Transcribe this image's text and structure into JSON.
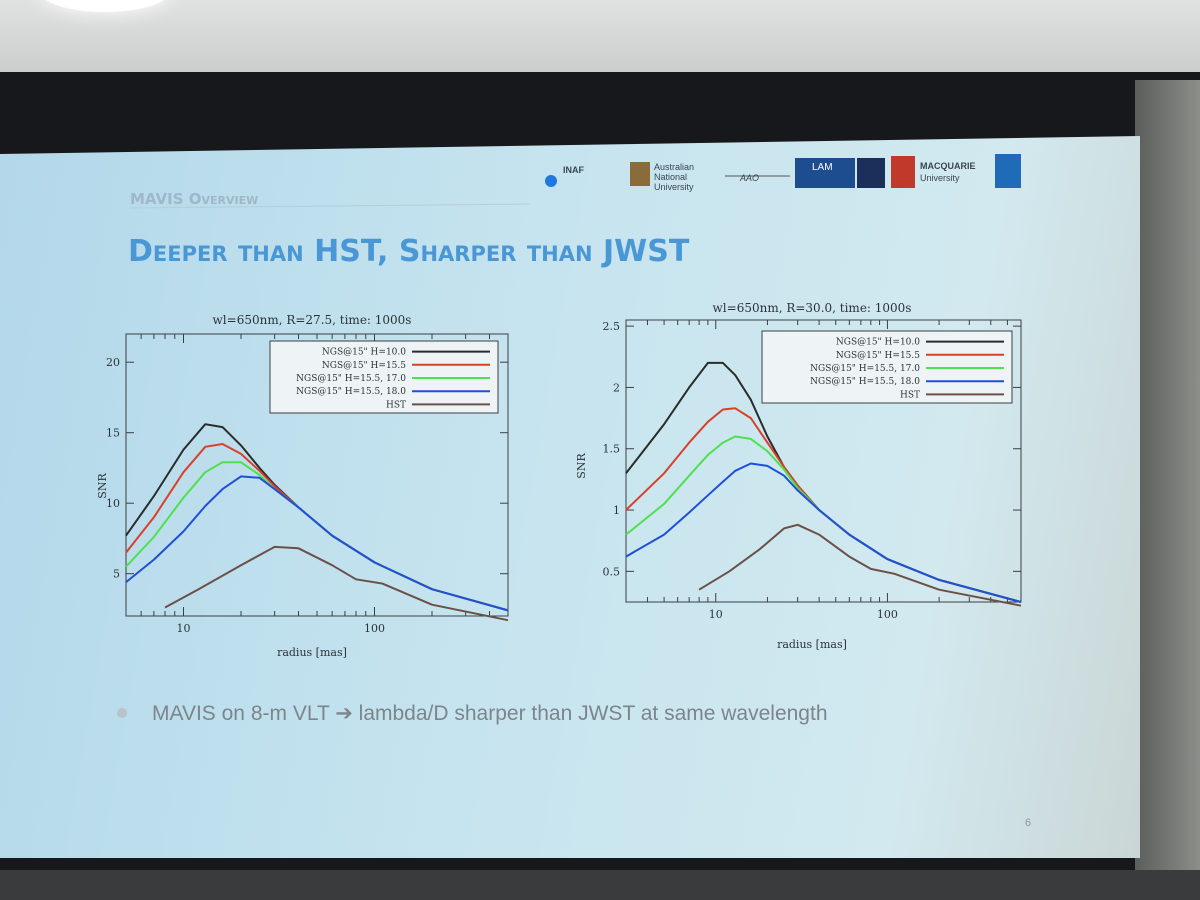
{
  "slide": {
    "section": "MAVIS Overview",
    "title": "Deeper than HST, Sharper than JWST",
    "bullet": "MAVIS on 8-m VLT ➔ lambda/D sharper than JWST at same wavelength",
    "page_number": "6",
    "logos": {
      "inaf": "INAF",
      "anu": [
        "Australian",
        "National",
        "University"
      ],
      "aao": "AAO",
      "lam": "LAM",
      "macquarie": [
        "MACQUARIE",
        "University"
      ]
    },
    "colors": {
      "title": "#4a97d6",
      "section": "#9fb7c7",
      "bullet": "#7c858b"
    }
  },
  "chart_data": [
    {
      "type": "line",
      "title": "wl=650nm,  R=27.5,  time: 1000s",
      "xlabel": "radius [mas]",
      "ylabel": "SNR",
      "xscale": "log",
      "xlim": [
        5,
        500
      ],
      "ylim": [
        2,
        22
      ],
      "xticks": [
        10,
        100
      ],
      "yticks": [
        5,
        10,
        15,
        20
      ],
      "legend_position": "top-right",
      "series": [
        {
          "name": "NGS@15\"  H=10.0",
          "color": "#2b2b2b",
          "x": [
            5,
            7,
            10,
            13,
            16,
            20,
            25,
            30,
            40,
            60,
            100,
            200,
            500
          ],
          "y": [
            7.7,
            10.5,
            13.8,
            15.6,
            15.4,
            14.1,
            12.5,
            11.3,
            9.7,
            7.7,
            5.8,
            3.9,
            2.4
          ]
        },
        {
          "name": "NGS@15\"  H=15.5",
          "color": "#d9402a",
          "x": [
            5,
            7,
            10,
            13,
            16,
            20,
            25,
            30,
            40,
            60,
            100,
            200,
            500
          ],
          "y": [
            6.5,
            9.0,
            12.2,
            14.0,
            14.2,
            13.5,
            12.3,
            11.2,
            9.7,
            7.7,
            5.8,
            3.9,
            2.4
          ]
        },
        {
          "name": "NGS@15\"  H=15.5, 17.0",
          "color": "#4ee14e",
          "x": [
            5,
            7,
            10,
            13,
            16,
            20,
            25,
            30,
            40,
            60,
            100,
            200,
            500
          ],
          "y": [
            5.5,
            7.6,
            10.4,
            12.2,
            12.9,
            12.9,
            12.0,
            11.0,
            9.7,
            7.7,
            5.8,
            3.9,
            2.4
          ]
        },
        {
          "name": "NGS@15\"  H=15.5, 18.0",
          "color": "#1f4fd8",
          "x": [
            5,
            7,
            10,
            13,
            16,
            20,
            25,
            30,
            40,
            60,
            100,
            200,
            500
          ],
          "y": [
            4.4,
            6.0,
            8.0,
            9.8,
            11.0,
            11.9,
            11.8,
            11.0,
            9.7,
            7.7,
            5.8,
            3.9,
            2.4
          ]
        },
        {
          "name": "HST",
          "color": "#6b5048",
          "x": [
            8,
            12,
            20,
            30,
            40,
            60,
            80,
            110,
            200,
            500
          ],
          "y": [
            2.6,
            3.9,
            5.6,
            6.9,
            6.8,
            5.6,
            4.6,
            4.3,
            2.8,
            1.7
          ]
        }
      ]
    },
    {
      "type": "line",
      "title": "wl=650nm,  R=30.0,  time: 1000s",
      "xlabel": "radius [mas]",
      "ylabel": "SNR",
      "xscale": "log",
      "xlim": [
        3,
        600
      ],
      "ylim": [
        0.25,
        2.55
      ],
      "xticks": [
        10,
        100
      ],
      "yticks": [
        0.5,
        1.0,
        1.5,
        2.0,
        2.5
      ],
      "legend_position": "top-right",
      "series": [
        {
          "name": "NGS@15\"  H=10.0",
          "color": "#2b2b2b",
          "x": [
            3,
            5,
            7,
            9,
            11,
            13,
            16,
            20,
            25,
            30,
            40,
            60,
            100,
            200,
            600
          ],
          "y": [
            1.3,
            1.7,
            2.0,
            2.2,
            2.2,
            2.1,
            1.9,
            1.6,
            1.35,
            1.2,
            1.0,
            0.8,
            0.6,
            0.43,
            0.25
          ]
        },
        {
          "name": "NGS@15\"  H=15.5",
          "color": "#d9402a",
          "x": [
            3,
            5,
            7,
            9,
            11,
            13,
            16,
            20,
            25,
            30,
            40,
            60,
            100,
            200,
            600
          ],
          "y": [
            1.0,
            1.3,
            1.55,
            1.72,
            1.82,
            1.83,
            1.75,
            1.55,
            1.35,
            1.2,
            1.0,
            0.8,
            0.6,
            0.43,
            0.25
          ]
        },
        {
          "name": "NGS@15\"  H=15.5, 17.0",
          "color": "#4ee14e",
          "x": [
            3,
            5,
            7,
            9,
            11,
            13,
            16,
            20,
            25,
            30,
            40,
            60,
            100,
            200,
            600
          ],
          "y": [
            0.8,
            1.05,
            1.28,
            1.45,
            1.55,
            1.6,
            1.58,
            1.48,
            1.33,
            1.18,
            1.0,
            0.8,
            0.6,
            0.43,
            0.25
          ]
        },
        {
          "name": "NGS@15\"  H=15.5, 18.0",
          "color": "#1f4fd8",
          "x": [
            3,
            5,
            7,
            9,
            11,
            13,
            16,
            20,
            25,
            30,
            40,
            60,
            100,
            200,
            600
          ],
          "y": [
            0.62,
            0.8,
            0.98,
            1.12,
            1.23,
            1.32,
            1.38,
            1.36,
            1.28,
            1.16,
            1.0,
            0.8,
            0.6,
            0.43,
            0.25
          ]
        },
        {
          "name": "HST",
          "color": "#6b5048",
          "x": [
            8,
            12,
            18,
            25,
            30,
            40,
            60,
            80,
            110,
            200,
            600
          ],
          "y": [
            0.35,
            0.5,
            0.68,
            0.85,
            0.88,
            0.8,
            0.62,
            0.52,
            0.48,
            0.35,
            0.22
          ]
        }
      ]
    }
  ]
}
